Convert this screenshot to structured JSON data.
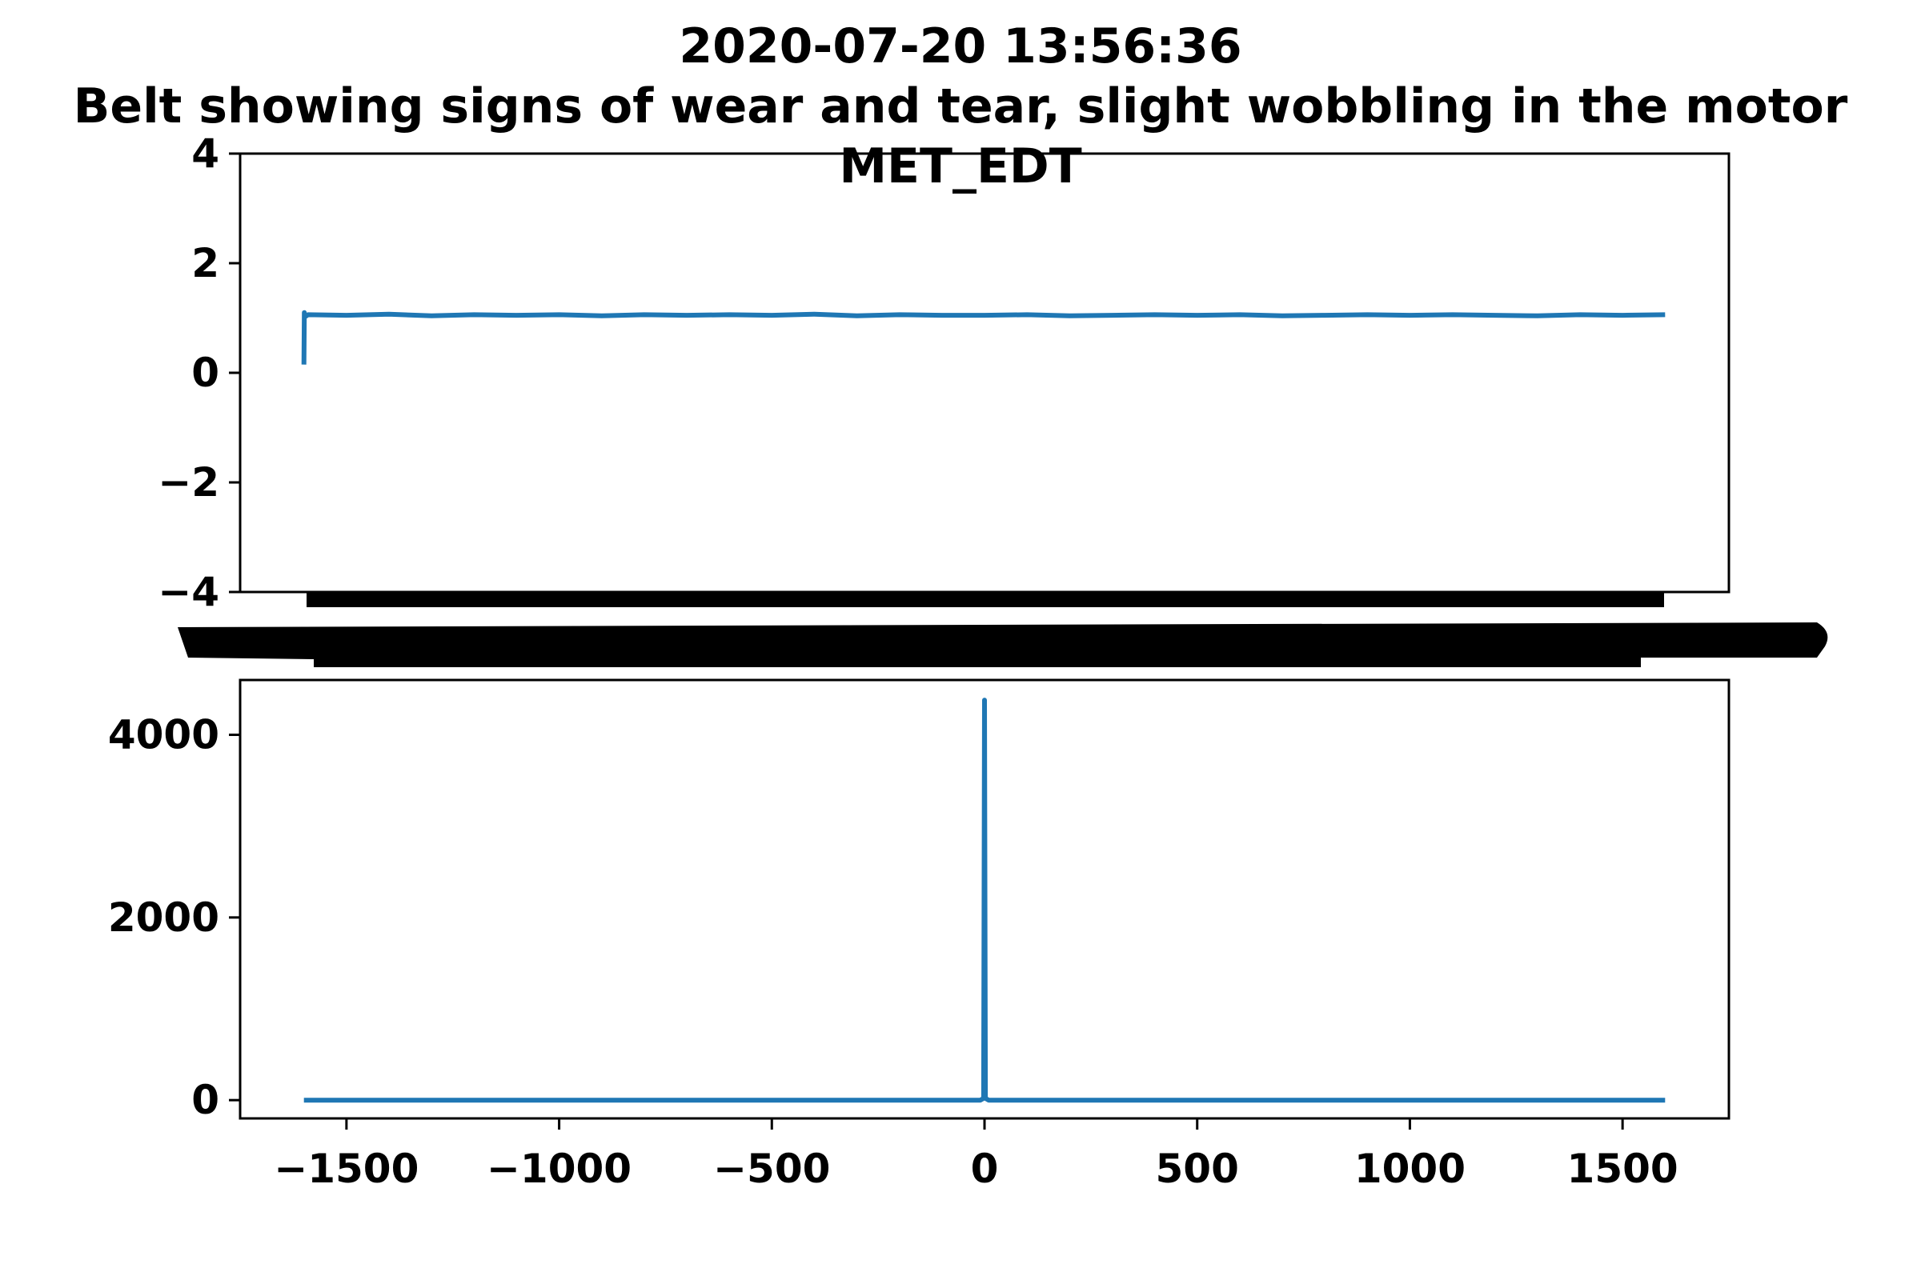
{
  "title": {
    "line1": "2020-07-20 13:56:36",
    "line2": "Belt showing signs of wear and tear, slight wobbling in the motor",
    "line3": "MET_EDT"
  },
  "colors": {
    "series": "#1f77b4",
    "axes": "#000000",
    "background": "#ffffff"
  },
  "chart_data": [
    {
      "type": "line",
      "title": "",
      "xlabel": "",
      "ylabel": "",
      "xlim": [
        -1750,
        1750
      ],
      "ylim": [
        -4,
        4
      ],
      "yticks": [
        4,
        2,
        0,
        -2,
        -4
      ],
      "yticklabels": [
        "4",
        "2",
        "0",
        "−2",
        "−4"
      ],
      "xtick_labels_note": "overlapping illegible black tick labels",
      "grid": false,
      "series": [
        {
          "x": [
            -1600,
            -1599,
            -1598,
            -1590,
            -1500,
            -1400,
            -1300,
            -1200,
            -1100,
            -1000,
            -900,
            -800,
            -700,
            -600,
            -500,
            -400,
            -300,
            -200,
            -100,
            0,
            100,
            200,
            300,
            400,
            500,
            600,
            700,
            800,
            900,
            1000,
            1100,
            1200,
            1300,
            1400,
            1500,
            1600
          ],
          "y": [
            0.15,
            1.1,
            1.02,
            1.06,
            1.05,
            1.07,
            1.04,
            1.06,
            1.05,
            1.06,
            1.04,
            1.06,
            1.05,
            1.06,
            1.05,
            1.07,
            1.04,
            1.06,
            1.05,
            1.05,
            1.06,
            1.04,
            1.05,
            1.06,
            1.05,
            1.06,
            1.04,
            1.05,
            1.06,
            1.05,
            1.06,
            1.05,
            1.04,
            1.06,
            1.05,
            1.06
          ]
        }
      ]
    },
    {
      "type": "line",
      "title": "",
      "xlabel": "",
      "ylabel": "",
      "xlim": [
        -1750,
        1750
      ],
      "ylim": [
        -200,
        4600
      ],
      "xticks": [
        -1500,
        -1000,
        -500,
        0,
        500,
        1000,
        1500
      ],
      "xticklabels": [
        "−1500",
        "−1000",
        "−500",
        "0",
        "500",
        "1000",
        "1500"
      ],
      "yticks": [
        0,
        2000,
        4000
      ],
      "yticklabels": [
        "0",
        "2000",
        "4000"
      ],
      "grid": false,
      "series": [
        {
          "x": [
            -1600,
            -10,
            -2,
            0,
            2,
            10,
            1600
          ],
          "y": [
            0,
            0,
            20,
            4380,
            20,
            0,
            0
          ]
        }
      ]
    }
  ]
}
